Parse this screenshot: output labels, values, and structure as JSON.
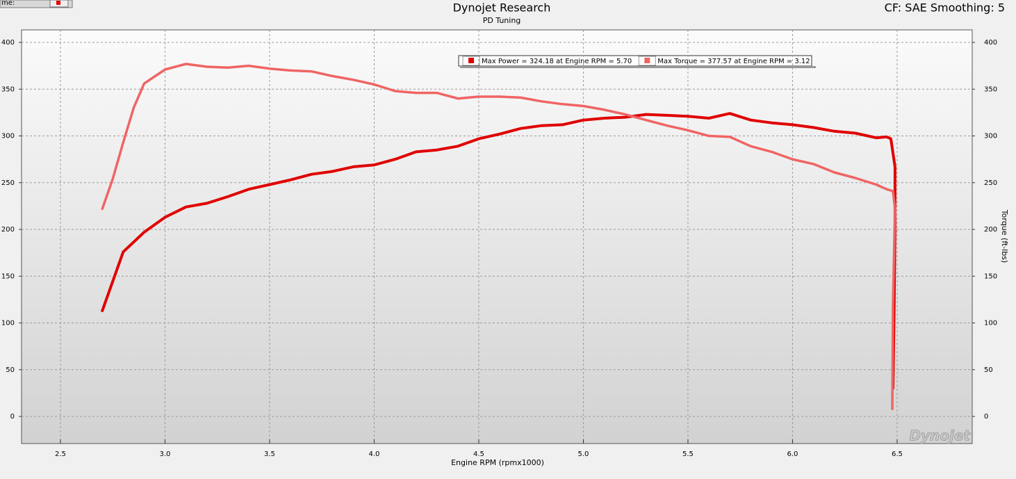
{
  "top_left_label": "me:",
  "chart_data": {
    "type": "line",
    "title": "Dynojet Research",
    "subtitle": "PD Tuning",
    "corner_note": "CF: SAE Smoothing: 5",
    "watermark": "Dynojet",
    "xlabel": "Engine RPM (rpmx1000)",
    "y2label": "Torque (ft-lbs)",
    "xlim": [
      2.314,
      6.859
    ],
    "xticks": [
      2.5,
      {
        "value": 3,
        "label": "3.0"
      },
      3.5,
      {
        "value": 4,
        "label": "4.0"
      },
      4.5,
      {
        "value": 5,
        "label": "5.0"
      },
      5.5,
      {
        "value": 6,
        "label": "6.0"
      },
      6.5
    ],
    "ylim": [
      -29,
      413.4
    ],
    "yticks": [
      0,
      50,
      100,
      150,
      200,
      250,
      300,
      350,
      400
    ],
    "y2lim": [
      -29,
      413.4
    ],
    "y2ticks": [
      0,
      50,
      100,
      150,
      200,
      250,
      300,
      350,
      400
    ],
    "grid": true,
    "legend": "top",
    "series": [
      {
        "name": "Max Power = 324.18 at Engine RPM = 5.70",
        "color": "#e00000",
        "x": [
          2.7,
          2.8,
          2.9,
          3.0,
          3.1,
          3.2,
          3.3,
          3.4,
          3.5,
          3.6,
          3.7,
          3.8,
          3.9,
          4.0,
          4.1,
          4.2,
          4.3,
          4.4,
          4.5,
          4.6,
          4.7,
          4.8,
          4.9,
          5.0,
          5.1,
          5.2,
          5.3,
          5.4,
          5.5,
          5.6,
          5.7,
          5.8,
          5.9,
          6.0,
          6.1,
          6.2,
          6.3,
          6.4,
          6.45,
          6.47,
          6.49,
          6.49,
          6.485,
          6.48
        ],
        "values": [
          113,
          176,
          197,
          213,
          224,
          228,
          235,
          243,
          248,
          253,
          259,
          262,
          267,
          269,
          275,
          283,
          285,
          289,
          297,
          302,
          308,
          311,
          312,
          317,
          319,
          320,
          323,
          322,
          321,
          319,
          324,
          317,
          314,
          312,
          309,
          305,
          303,
          298,
          299,
          297,
          267,
          200,
          100,
          30
        ]
      },
      {
        "name": "Max Torque = 377.57 at Engine RPM = 3.12",
        "color": "#f06464",
        "axis": "y2",
        "x": [
          2.7,
          2.75,
          2.8,
          2.85,
          2.9,
          3.0,
          3.05,
          3.1,
          3.2,
          3.3,
          3.4,
          3.5,
          3.6,
          3.7,
          3.8,
          3.9,
          4.0,
          4.1,
          4.2,
          4.3,
          4.4,
          4.5,
          4.6,
          4.7,
          4.8,
          4.9,
          5.0,
          5.1,
          5.2,
          5.3,
          5.4,
          5.5,
          5.6,
          5.7,
          5.8,
          5.9,
          6.0,
          6.1,
          6.2,
          6.3,
          6.4,
          6.45,
          6.48,
          6.49,
          6.48,
          6.477
        ],
        "values": [
          222,
          254,
          293,
          330,
          356,
          371,
          374,
          377,
          374,
          373,
          375,
          372,
          370,
          369,
          364,
          360,
          355,
          348,
          346,
          346,
          340,
          342,
          342,
          341,
          337,
          334,
          332,
          328,
          323,
          317,
          311,
          306,
          300,
          299,
          289,
          283,
          275,
          270,
          261,
          255,
          248,
          243,
          241,
          222,
          118,
          8
        ]
      }
    ]
  }
}
